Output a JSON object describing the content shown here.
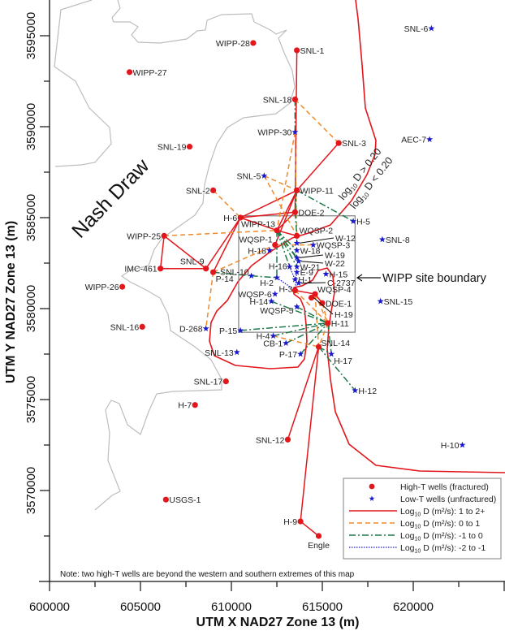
{
  "chart_data": {
    "type": "scatter",
    "xlabel": "UTM X NAD27 Zone 13 (m)",
    "ylabel": "UTM Y NAD27 Zone 13 (m)",
    "xlim": [
      600000,
      625000
    ],
    "ylim": [
      3565000,
      3597000
    ],
    "xticks": [
      600000,
      605000,
      610000,
      615000,
      620000
    ],
    "yticks": [
      3570000,
      3575000,
      3580000,
      3585000,
      3590000,
      3595000
    ],
    "grid": false,
    "legend_placement": "bottom-right",
    "colors": {
      "high_t": "#e3161c",
      "low_t": "#1a1acc",
      "d_1_2": "#e3161c",
      "d_0_1": "#f08a2a",
      "d_m1_0": "#1e7a4a",
      "d_m2_m1": "#1a1acc",
      "nash_draw": "#bdbdbd",
      "boundary": "#808080"
    },
    "legend": [
      {
        "key": "high",
        "label": "High-T wells (fractured)"
      },
      {
        "key": "low",
        "label": "Low-T wells (unfractured)"
      },
      {
        "key": "d_1_2",
        "prefix": "Log",
        "sub": "10",
        "label": " D (m²/s): 1 to 2+"
      },
      {
        "key": "d_0_1",
        "prefix": "Log",
        "sub": "10",
        "label": " D (m²/s): 0 to 1"
      },
      {
        "key": "d_m1_0",
        "prefix": "Log",
        "sub": "10",
        "label": " D (m²/s): -1 to 0"
      },
      {
        "key": "d_m2_m1",
        "prefix": "Log",
        "sub": "10",
        "label": " D (m²/s): -2 to -1"
      }
    ],
    "annotations": {
      "nash_draw": "Nash Draw",
      "site_boundary": "WIPP site boundary",
      "contour_above": {
        "prefix": "log",
        "sub": "10",
        "label": " D > 0.20"
      },
      "contour_below": {
        "prefix": "log",
        "sub": "10",
        "label": " D < 0.20"
      },
      "note": "Note:  two high-T wells are beyond the western and southern extremes of this map"
    },
    "site_boundary_box": {
      "x": [
        610400,
        616800
      ],
      "y": [
        3578700,
        3585100
      ]
    },
    "wells": [
      {
        "name": "SNL-6",
        "x": 621000,
        "y": 3595400,
        "type": "low"
      },
      {
        "name": "WIPP-28",
        "x": 611200,
        "y": 3594600,
        "type": "high"
      },
      {
        "name": "SNL-1",
        "x": 613600,
        "y": 3594200,
        "type": "high"
      },
      {
        "name": "WIPP-27",
        "x": 604400,
        "y": 3593000,
        "type": "high"
      },
      {
        "name": "SNL-18",
        "x": 613500,
        "y": 3591500,
        "type": "high"
      },
      {
        "name": "WIPP-30",
        "x": 613500,
        "y": 3589700,
        "type": "low"
      },
      {
        "name": "SNL-19",
        "x": 607700,
        "y": 3588900,
        "type": "high"
      },
      {
        "name": "SNL-3",
        "x": 615900,
        "y": 3589100,
        "type": "high"
      },
      {
        "name": "AEC-7",
        "x": 620900,
        "y": 3589300,
        "type": "low"
      },
      {
        "name": "SNL-5",
        "x": 611800,
        "y": 3587300,
        "type": "low"
      },
      {
        "name": "SNL-2",
        "x": 609000,
        "y": 3586500,
        "type": "high"
      },
      {
        "name": "WIPP-11",
        "x": 613600,
        "y": 3586500,
        "type": "high"
      },
      {
        "name": "DOE-2",
        "x": 613500,
        "y": 3585300,
        "type": "high"
      },
      {
        "name": "H-6",
        "x": 610500,
        "y": 3585000,
        "type": "high"
      },
      {
        "name": "H-5",
        "x": 616700,
        "y": 3584800,
        "type": "low"
      },
      {
        "name": "WIPP-13",
        "x": 612500,
        "y": 3584300,
        "type": "high"
      },
      {
        "name": "WIPP-25",
        "x": 606300,
        "y": 3584000,
        "type": "high"
      },
      {
        "name": "WQSP-2",
        "x": 613600,
        "y": 3584000,
        "type": "high"
      },
      {
        "name": "SNL-8",
        "x": 618300,
        "y": 3583800,
        "type": "low"
      },
      {
        "name": "WQSP-1",
        "x": 612400,
        "y": 3583500,
        "type": "high"
      },
      {
        "name": "W-12",
        "x": 613600,
        "y": 3583600,
        "type": "low"
      },
      {
        "name": "WQSP-3",
        "x": 614500,
        "y": 3583500,
        "type": "low"
      },
      {
        "name": "H-18",
        "x": 612100,
        "y": 3583200,
        "type": "low"
      },
      {
        "name": "W-18",
        "x": 613600,
        "y": 3583200,
        "type": "low"
      },
      {
        "name": "W-19",
        "x": 613600,
        "y": 3582800,
        "type": "low"
      },
      {
        "name": "W-22",
        "x": 613700,
        "y": 3582600,
        "type": "low"
      },
      {
        "name": "W-21",
        "x": 613600,
        "y": 3582300,
        "type": "low"
      },
      {
        "name": "H-16",
        "x": 613200,
        "y": 3582300,
        "type": "low"
      },
      {
        "name": "IMC-461",
        "x": 606100,
        "y": 3582200,
        "type": "high"
      },
      {
        "name": "SNL-9",
        "x": 608600,
        "y": 3582200,
        "type": "high"
      },
      {
        "name": "P-14",
        "x": 609000,
        "y": 3582000,
        "type": "high"
      },
      {
        "name": "E-9",
        "x": 613600,
        "y": 3582000,
        "type": "low"
      },
      {
        "name": "H-15",
        "x": 615200,
        "y": 3581900,
        "type": "low"
      },
      {
        "name": "SNL-10",
        "x": 611100,
        "y": 3581800,
        "type": "low"
      },
      {
        "name": "H-2",
        "x": 612500,
        "y": 3581700,
        "type": "low"
      },
      {
        "name": "H-1",
        "x": 613500,
        "y": 3581600,
        "type": "low"
      },
      {
        "name": "C-2737",
        "x": 613700,
        "y": 3581400,
        "type": "low"
      },
      {
        "name": "WIPP-26",
        "x": 604000,
        "y": 3581200,
        "type": "high"
      },
      {
        "name": "H-3",
        "x": 613500,
        "y": 3581000,
        "type": "high"
      },
      {
        "name": "WQSP-6",
        "x": 612400,
        "y": 3580800,
        "type": "low"
      },
      {
        "name": "WQSP-4",
        "x": 614600,
        "y": 3580800,
        "type": "high"
      },
      {
        "name": "H-19",
        "x": 614400,
        "y": 3580600,
        "type": "high"
      },
      {
        "name": "H-14",
        "x": 612200,
        "y": 3580400,
        "type": "low"
      },
      {
        "name": "DOE-1",
        "x": 615000,
        "y": 3580300,
        "type": "high"
      },
      {
        "name": "SNL-15",
        "x": 618200,
        "y": 3580400,
        "type": "low"
      },
      {
        "name": "WQSP-5",
        "x": 613600,
        "y": 3580100,
        "type": "low"
      },
      {
        "name": "H-11",
        "x": 615300,
        "y": 3579200,
        "type": "high"
      },
      {
        "name": "SNL-16",
        "x": 605100,
        "y": 3579000,
        "type": "high"
      },
      {
        "name": "D-268",
        "x": 608600,
        "y": 3578900,
        "type": "low"
      },
      {
        "name": "P-15",
        "x": 610500,
        "y": 3578800,
        "type": "low"
      },
      {
        "name": "H-4",
        "x": 612300,
        "y": 3578500,
        "type": "low"
      },
      {
        "name": "CB-1",
        "x": 613000,
        "y": 3578100,
        "type": "low"
      },
      {
        "name": "SNL-14",
        "x": 614800,
        "y": 3577900,
        "type": "high"
      },
      {
        "name": "SNL-13",
        "x": 610300,
        "y": 3577600,
        "type": "low"
      },
      {
        "name": "H-17",
        "x": 615500,
        "y": 3577500,
        "type": "low"
      },
      {
        "name": "P-17",
        "x": 613800,
        "y": 3577500,
        "type": "low"
      },
      {
        "name": "SNL-17",
        "x": 609700,
        "y": 3576000,
        "type": "high"
      },
      {
        "name": "H-7",
        "x": 608000,
        "y": 3574700,
        "type": "high"
      },
      {
        "name": "H-12",
        "x": 616800,
        "y": 3575500,
        "type": "low"
      },
      {
        "name": "SNL-12",
        "x": 613100,
        "y": 3572800,
        "type": "high"
      },
      {
        "name": "H-10",
        "x": 622700,
        "y": 3572500,
        "type": "low"
      },
      {
        "name": "USGS-1",
        "x": 606400,
        "y": 3569500,
        "type": "high"
      },
      {
        "name": "H-9",
        "x": 613800,
        "y": 3568300,
        "type": "high"
      },
      {
        "name": "Engle",
        "x": 614800,
        "y": 3567500,
        "type": "high"
      }
    ],
    "links": [
      {
        "from": "SNL-1",
        "to": "DOE-2",
        "class": "d_1_2"
      },
      {
        "from": "SNL-3",
        "to": "WIPP-11",
        "class": "d_1_2"
      },
      {
        "from": "H-6",
        "to": "WIPP-11",
        "class": "d_1_2"
      },
      {
        "from": "H-6",
        "to": "DOE-2",
        "class": "d_1_2"
      },
      {
        "from": "H-6",
        "to": "SNL-9",
        "class": "d_1_2"
      },
      {
        "from": "H-6",
        "to": "P-14",
        "class": "d_1_2"
      },
      {
        "from": "H-6",
        "to": "WIPP-13",
        "class": "d_1_2"
      },
      {
        "from": "WIPP-11",
        "to": "WIPP-13",
        "class": "d_1_2"
      },
      {
        "from": "WIPP-11",
        "to": "WQSP-1",
        "class": "d_1_2"
      },
      {
        "from": "DOE-2",
        "to": "WIPP-13",
        "class": "d_1_2"
      },
      {
        "from": "WIPP-13",
        "to": "WQSP-2",
        "class": "d_1_2"
      },
      {
        "from": "WIPP-25",
        "to": "IMC-461",
        "class": "d_1_2"
      },
      {
        "from": "WIPP-25",
        "to": "SNL-9",
        "class": "d_1_2"
      },
      {
        "from": "IMC-461",
        "to": "SNL-9",
        "class": "d_1_2"
      },
      {
        "from": "H-3",
        "to": "WQSP-4",
        "class": "d_1_2"
      },
      {
        "from": "WQSP-4",
        "to": "DOE-1",
        "class": "d_1_2"
      },
      {
        "from": "SNL-12",
        "to": "SNL-14",
        "class": "d_1_2"
      },
      {
        "from": "H-9",
        "to": "SNL-14",
        "class": "d_1_2"
      },
      {
        "from": "H-9",
        "to": "Engle",
        "class": "d_1_2"
      },
      {
        "from": "SNL-18",
        "to": "SNL-3",
        "class": "d_0_1"
      },
      {
        "from": "SNL-2",
        "to": "H-6",
        "class": "d_0_1"
      },
      {
        "from": "SNL-5",
        "to": "WIPP-11",
        "class": "d_0_1"
      },
      {
        "from": "SNL-5",
        "to": "WQSP-2",
        "class": "d_0_1"
      },
      {
        "from": "WIPP-30",
        "to": "WIPP-13",
        "class": "d_0_1"
      },
      {
        "from": "WIPP-30",
        "to": "WQSP-2",
        "class": "d_0_1"
      },
      {
        "from": "WIPP-25",
        "to": "WIPP-13",
        "class": "d_0_1"
      },
      {
        "from": "P-14",
        "to": "WQSP-1",
        "class": "d_0_1"
      },
      {
        "from": "P-14",
        "to": "D-268",
        "class": "d_0_1"
      },
      {
        "from": "WQSP-1",
        "to": "WQSP-3",
        "class": "d_0_1"
      },
      {
        "from": "H-4",
        "to": "SNL-14",
        "class": "d_0_1"
      },
      {
        "from": "H-3",
        "to": "H-11",
        "class": "d_0_1"
      },
      {
        "from": "WQSP-4",
        "to": "SNL-14",
        "class": "d_0_1"
      },
      {
        "from": "DOE-1",
        "to": "H-11",
        "class": "d_0_1"
      },
      {
        "from": "H-11",
        "to": "SNL-14",
        "class": "d_0_1"
      },
      {
        "from": "WQSP-4",
        "to": "H-11",
        "class": "d_0_1"
      },
      {
        "from": "SNL-18",
        "to": "WIPP-30",
        "class": "d_m1_0"
      },
      {
        "from": "WIPP-11",
        "to": "H-5",
        "class": "d_m1_0"
      },
      {
        "from": "WIPP-11",
        "to": "DOE-2",
        "class": "d_m1_0"
      },
      {
        "from": "DOE-2",
        "to": "WQSP-2",
        "class": "d_m1_0"
      },
      {
        "from": "WIPP-13",
        "to": "W-18",
        "class": "d_m1_0"
      },
      {
        "from": "WIPP-13",
        "to": "W-19",
        "class": "d_m1_0"
      },
      {
        "from": "WIPP-13",
        "to": "W-22",
        "class": "d_m1_0"
      },
      {
        "from": "WIPP-13",
        "to": "W-21",
        "class": "d_m1_0"
      },
      {
        "from": "WIPP-13",
        "to": "H-16",
        "class": "d_m1_0"
      },
      {
        "from": "WIPP-13",
        "to": "H-2",
        "class": "d_m1_0"
      },
      {
        "from": "P-14",
        "to": "SNL-10",
        "class": "d_m1_0"
      },
      {
        "from": "SNL-10",
        "to": "H-2",
        "class": "d_m1_0"
      },
      {
        "from": "P-15",
        "to": "H-11",
        "class": "d_m1_0"
      },
      {
        "from": "H-4",
        "to": "H-11",
        "class": "d_m1_0"
      },
      {
        "from": "CB-1",
        "to": "H-11",
        "class": "d_m1_0"
      },
      {
        "from": "H-14",
        "to": "H-11",
        "class": "d_m1_0"
      },
      {
        "from": "WQSP-5",
        "to": "H-11",
        "class": "d_m1_0"
      },
      {
        "from": "P-17",
        "to": "H-11",
        "class": "d_m1_0"
      },
      {
        "from": "H-11",
        "to": "H-17",
        "class": "d_m1_0"
      },
      {
        "from": "SNL-14",
        "to": "H-12",
        "class": "d_m1_0"
      },
      {
        "from": "SNL-14",
        "to": "H-17",
        "class": "d_m1_0"
      },
      {
        "from": "H-2",
        "to": "H-3",
        "class": "d_m2_m1"
      },
      {
        "from": "H-16",
        "to": "H-1",
        "class": "d_m2_m1"
      },
      {
        "from": "W-12",
        "to": "WQSP-2",
        "class": "d_m2_m1"
      },
      {
        "from": "E-9",
        "to": "H-3",
        "class": "d_m2_m1"
      }
    ]
  }
}
